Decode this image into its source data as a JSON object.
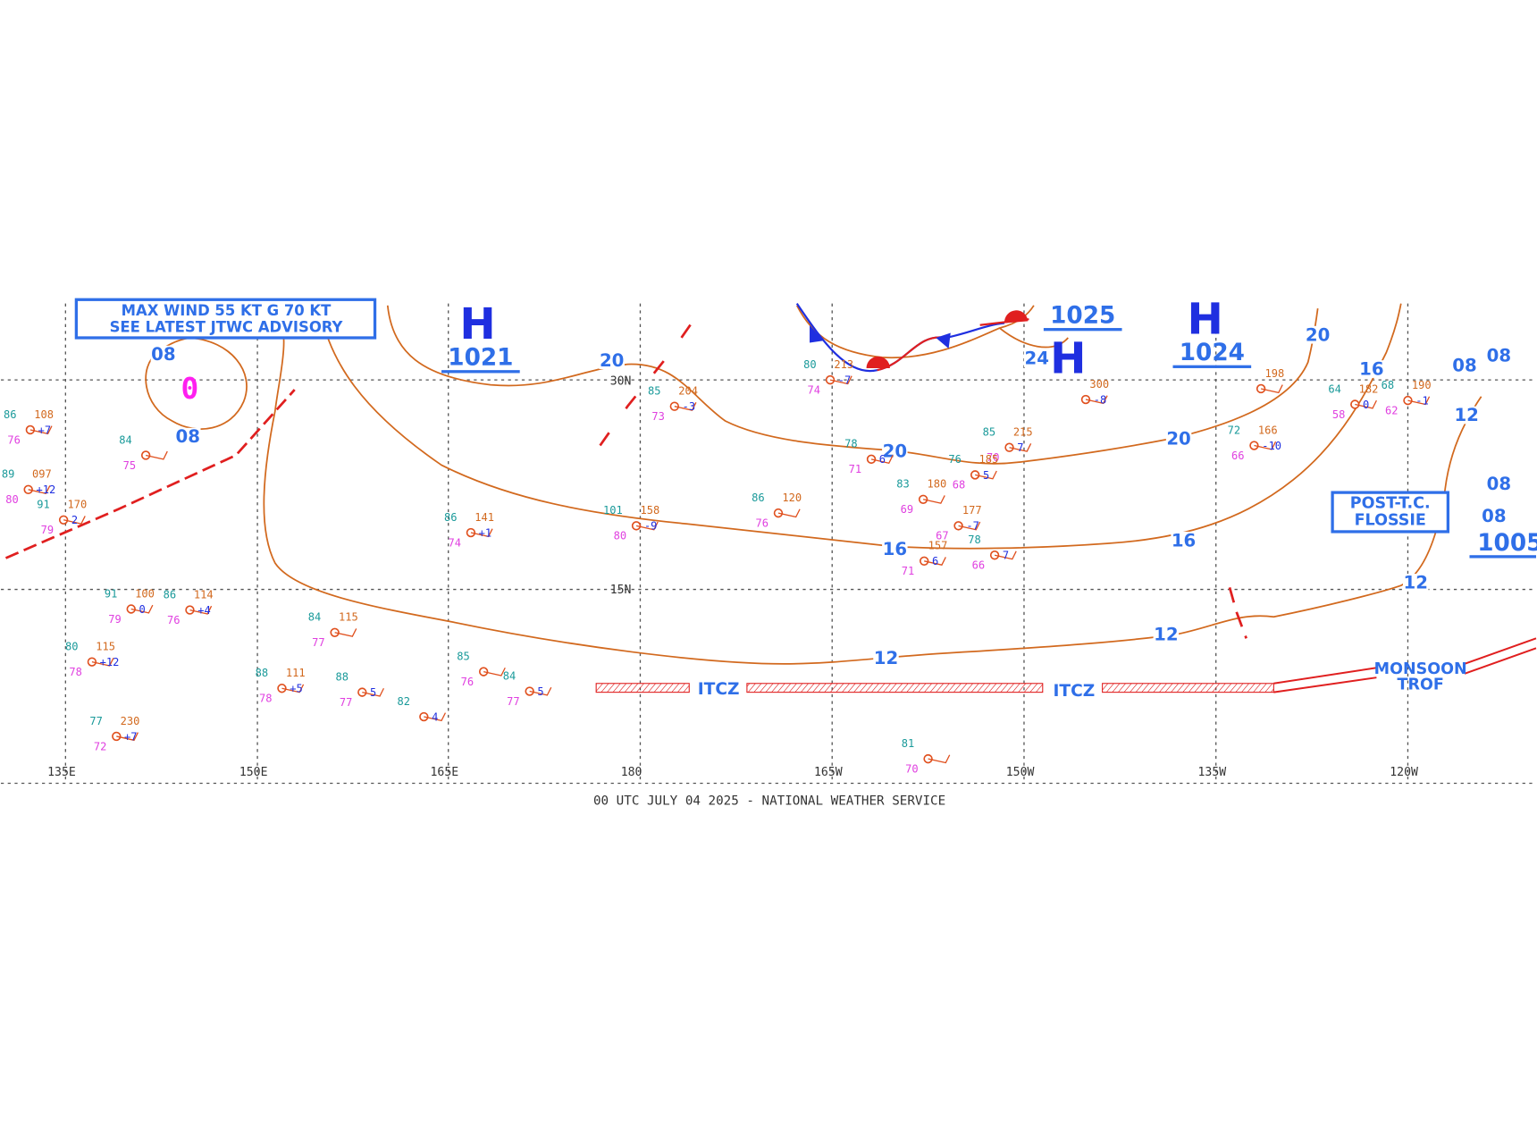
{
  "advisory": [
    "MAX WIND 55 KT G 70 KT",
    "SEE LATEST JTWC ADVISORY"
  ],
  "storm_symbol": "0",
  "pressure_centers": [
    {
      "letter": "H",
      "value": "1021"
    },
    {
      "letter": "H",
      "value": "1024"
    },
    {
      "letter": "H",
      "value": "1025"
    }
  ],
  "low_pressure": "1005",
  "isobar_labels": [
    "08",
    "08",
    "20",
    "20",
    "20",
    "20",
    "16",
    "16",
    "16",
    "12",
    "12",
    "12",
    "12",
    "24",
    "08",
    "08",
    "08",
    "08"
  ],
  "longitudes": [
    "135E",
    "150E",
    "165E",
    "180",
    "165W",
    "150W",
    "135W",
    "120W"
  ],
  "latitudes": [
    "30N",
    "15N"
  ],
  "features": [
    "ITCZ",
    "ITCZ",
    "MONSOON",
    "TROF",
    "POST-T.C.",
    "FLOSSIE"
  ],
  "footer": "00 UTC JULY 04 2025 - NATIONAL WEATHER SERVICE",
  "stations": [
    {
      "temp": "85",
      "pressure": "204",
      "dewpoint": "73",
      "tendency": "-3"
    },
    {
      "temp": "80",
      "pressure": "213",
      "dewpoint": "74",
      "tendency": "-7"
    },
    {
      "pressure": "300",
      "tendency": "-8"
    },
    {
      "pressure": "198"
    },
    {
      "temp": "64",
      "pressure": "182",
      "dewpoint": "58",
      "tendency": "0"
    },
    {
      "temp": "68",
      "pressure": "190",
      "dewpoint": "62",
      "tendency": "-1"
    },
    {
      "temp": "72",
      "pressure": "166",
      "dewpoint": "66",
      "tendency": "-10"
    },
    {
      "temp": "85",
      "pressure": "215",
      "dewpoint": "70",
      "tendency": "7"
    },
    {
      "temp": "76",
      "pressure": "185",
      "dewpoint": "68",
      "tendency": "5"
    },
    {
      "temp": "83",
      "pressure": "180",
      "dewpoint": "69"
    },
    {
      "pressure": "177",
      "dewpoint": "67",
      "tendency": "-7"
    },
    {
      "temp": "78",
      "dewpoint": "66",
      "tendency": "7"
    },
    {
      "pressure": "157",
      "dewpoint": "71",
      "tendency": "6"
    },
    {
      "temp": "78",
      "dewpoint": "71",
      "tendency": "6"
    },
    {
      "temp": "86",
      "pressure": "120",
      "dewpoint": "76"
    },
    {
      "temp": "101",
      "pressure": "158",
      "dewpoint": "80",
      "tendency": "-9"
    },
    {
      "temp": "86",
      "pressure": "141",
      "dewpoint": "74",
      "tendency": "+1"
    },
    {
      "temp": "84",
      "pressure": "115",
      "dewpoint": "77"
    },
    {
      "temp": "88",
      "pressure": "111",
      "dewpoint": "78",
      "tendency": "+5"
    },
    {
      "temp": "88",
      "dewpoint": "77",
      "tendency": "5"
    },
    {
      "temp": "82",
      "tendency": "4"
    },
    {
      "temp": "85",
      "dewpoint": "76"
    },
    {
      "temp": "84",
      "dewpoint": "77",
      "tendency": "5"
    },
    {
      "temp": "81",
      "dewpoint": "70"
    },
    {
      "temp": "77",
      "pressure": "230",
      "dewpoint": "72",
      "tendency": "+7"
    },
    {
      "temp": "80",
      "pressure": "115",
      "dewpoint": "78",
      "tendency": "+12"
    },
    {
      "temp": "91",
      "pressure": "100",
      "dewpoint": "79",
      "tendency": "0"
    },
    {
      "temp": "86",
      "pressure": "114",
      "dewpoint": "76",
      "tendency": "+4"
    },
    {
      "temp": "84",
      "dewpoint": "75"
    },
    {
      "temp": "91",
      "pressure": "170",
      "dewpoint": "79",
      "tendency": "2"
    },
    {
      "temp": "89",
      "pressure": "097",
      "dewpoint": "80",
      "tendency": "+12"
    },
    {
      "temp": "86",
      "pressure": "108",
      "dewpoint": "76",
      "tendency": "+7"
    }
  ]
}
